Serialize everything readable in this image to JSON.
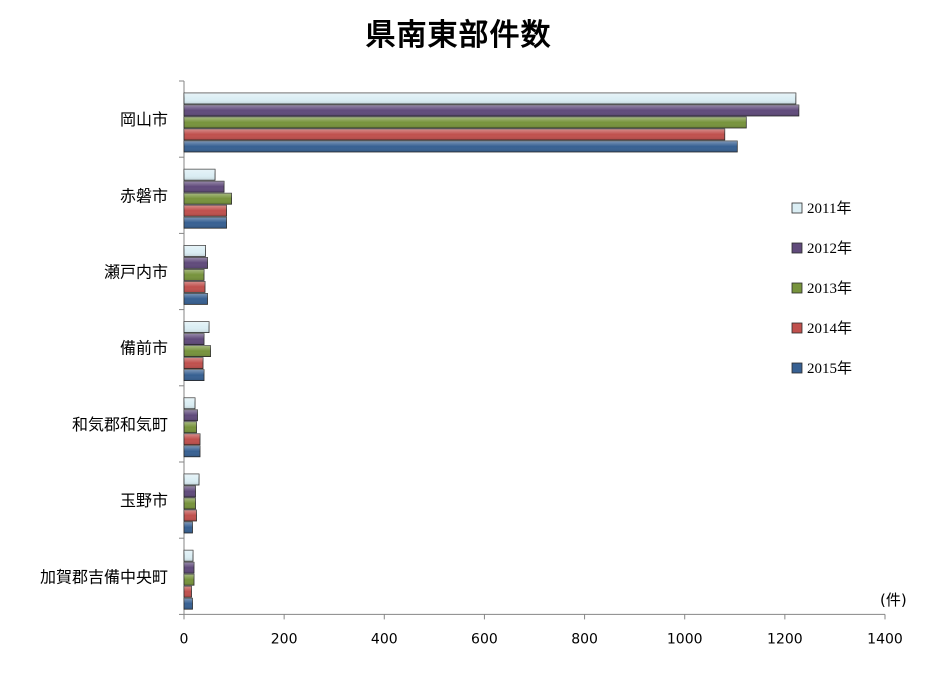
{
  "chart_data": {
    "type": "bar",
    "orientation": "horizontal",
    "title": "県南東部件数",
    "unit_label": "(件)",
    "categories": [
      "岡山市",
      "赤磐市",
      "瀬戸内市",
      "備前市",
      "和気郡和気町",
      "玉野市",
      "加賀郡吉備中央町"
    ],
    "series": [
      {
        "name": "2011年",
        "color": "#dbeef4",
        "values": [
          1222,
          62,
          43,
          50,
          22,
          30,
          18
        ]
      },
      {
        "name": "2012年",
        "color": "#604a7b",
        "values": [
          1228,
          80,
          47,
          40,
          27,
          23,
          20
        ]
      },
      {
        "name": "2013年",
        "color": "#77933c",
        "values": [
          1123,
          95,
          40,
          53,
          25,
          23,
          20
        ]
      },
      {
        "name": "2014年",
        "color": "#c0504d",
        "values": [
          1080,
          85,
          42,
          38,
          32,
          25,
          15
        ]
      },
      {
        "name": "2015年",
        "color": "#376092",
        "values": [
          1105,
          85,
          47,
          40,
          32,
          17,
          17
        ]
      }
    ],
    "xlim": [
      0,
      1400
    ],
    "xticks": [
      0,
      200,
      400,
      600,
      800,
      1000,
      1200,
      1400
    ],
    "xtick_labels": [
      "0",
      "200",
      "400",
      "600",
      "800",
      "1000",
      "1200",
      "1400"
    ],
    "grid": false,
    "legend_position": "right"
  }
}
